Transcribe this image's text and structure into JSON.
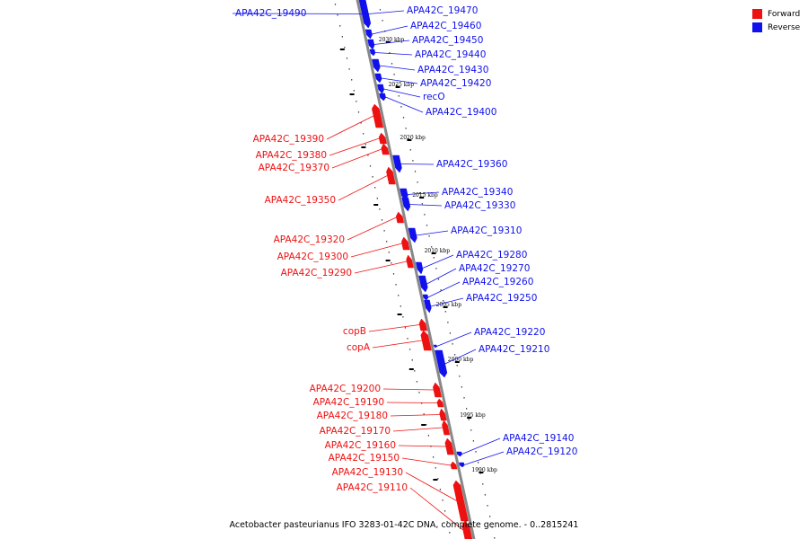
{
  "caption": "Acetobacter pasteurianus IFO 3283-01-42C DNA, complete genome. - 0..2815241",
  "legend": [
    {
      "label": "Forward",
      "color": "#ee1111"
    },
    {
      "label": "Reverse",
      "color": "#1111ee"
    }
  ],
  "colors": {
    "forward": "#ee1111",
    "reverse": "#1111ee",
    "axis": "#888888"
  },
  "kbp_ticks": [
    "2030 kbp",
    "2025 kbp",
    "2020 kbp",
    "2015 kbp",
    "2010 kbp",
    "2005 kbp",
    "2000 kbp",
    "1995 kbp",
    "1990 kbp"
  ],
  "genes": [
    {
      "name": "APA42C_19490",
      "strand": "reverse"
    },
    {
      "name": "APA42C_19470",
      "strand": "reverse"
    },
    {
      "name": "APA42C_19460",
      "strand": "reverse"
    },
    {
      "name": "APA42C_19450",
      "strand": "reverse"
    },
    {
      "name": "APA42C_19440",
      "strand": "reverse"
    },
    {
      "name": "APA42C_19430",
      "strand": "reverse"
    },
    {
      "name": "APA42C_19420",
      "strand": "reverse"
    },
    {
      "name": "recO",
      "strand": "reverse"
    },
    {
      "name": "APA42C_19400",
      "strand": "reverse"
    },
    {
      "name": "APA42C_19390",
      "strand": "forward"
    },
    {
      "name": "APA42C_19380",
      "strand": "forward"
    },
    {
      "name": "APA42C_19370",
      "strand": "forward"
    },
    {
      "name": "APA42C_19360",
      "strand": "reverse"
    },
    {
      "name": "APA42C_19350",
      "strand": "forward"
    },
    {
      "name": "APA42C_19340",
      "strand": "reverse"
    },
    {
      "name": "APA42C_19330",
      "strand": "reverse"
    },
    {
      "name": "APA42C_19320",
      "strand": "forward"
    },
    {
      "name": "APA42C_19310",
      "strand": "reverse"
    },
    {
      "name": "APA42C_19300",
      "strand": "forward"
    },
    {
      "name": "APA42C_19290",
      "strand": "forward"
    },
    {
      "name": "APA42C_19280",
      "strand": "reverse"
    },
    {
      "name": "APA42C_19270",
      "strand": "reverse"
    },
    {
      "name": "APA42C_19260",
      "strand": "reverse"
    },
    {
      "name": "APA42C_19250",
      "strand": "reverse"
    },
    {
      "name": "copB",
      "strand": "forward"
    },
    {
      "name": "copA",
      "strand": "forward"
    },
    {
      "name": "APA42C_19220",
      "strand": "reverse"
    },
    {
      "name": "APA42C_19210",
      "strand": "reverse"
    },
    {
      "name": "APA42C_19200",
      "strand": "forward"
    },
    {
      "name": "APA42C_19190",
      "strand": "forward"
    },
    {
      "name": "APA42C_19180",
      "strand": "forward"
    },
    {
      "name": "APA42C_19170",
      "strand": "forward"
    },
    {
      "name": "APA42C_19160",
      "strand": "forward"
    },
    {
      "name": "APA42C_19150",
      "strand": "forward"
    },
    {
      "name": "APA42C_19140",
      "strand": "reverse"
    },
    {
      "name": "APA42C_19130",
      "strand": "forward"
    },
    {
      "name": "APA42C_19120",
      "strand": "reverse"
    },
    {
      "name": "APA42C_19110",
      "strand": "forward"
    }
  ]
}
